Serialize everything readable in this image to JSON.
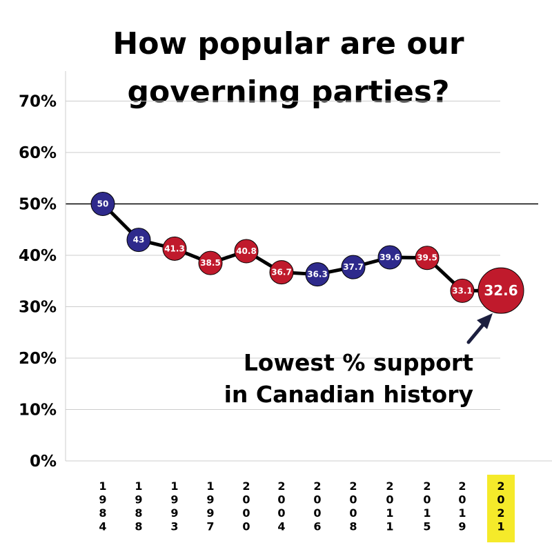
{
  "chart_data": {
    "type": "line",
    "title_lines": [
      "How popular are our",
      "governing parties?"
    ],
    "categories": [
      "1984",
      "1988",
      "1993",
      "1997",
      "2000",
      "2004",
      "2006",
      "2008",
      "2011",
      "2015",
      "2019",
      "2021"
    ],
    "values": [
      50,
      43,
      41.3,
      38.5,
      40.8,
      36.7,
      36.3,
      37.7,
      39.6,
      39.5,
      33.1,
      32.6
    ],
    "data_labels": [
      "50",
      "43",
      "41.3",
      "38.5",
      "40.8",
      "36.7",
      "36.3",
      "37.7",
      "39.6",
      "39.5",
      "33.1",
      "32.6"
    ],
    "point_parties": [
      "blue",
      "blue",
      "red",
      "red",
      "red",
      "red",
      "blue",
      "blue",
      "blue",
      "red",
      "red",
      "red"
    ],
    "colors": {
      "blue": "#2e2a8c",
      "red": "#c01a2c",
      "line": "#000000",
      "highlight": "#f5ea2a",
      "grid": "#cccccc"
    },
    "y_ticks": [
      "0%",
      "10%",
      "20%",
      "30%",
      "40%",
      "50%",
      "60%",
      "70%"
    ],
    "ylim": [
      0,
      75
    ],
    "reference_line": 50,
    "highlighted_category": "2021",
    "annotation_lines": [
      "Lowest % support",
      "in Canadian history"
    ],
    "grid": "horizontal",
    "legend": "none"
  }
}
